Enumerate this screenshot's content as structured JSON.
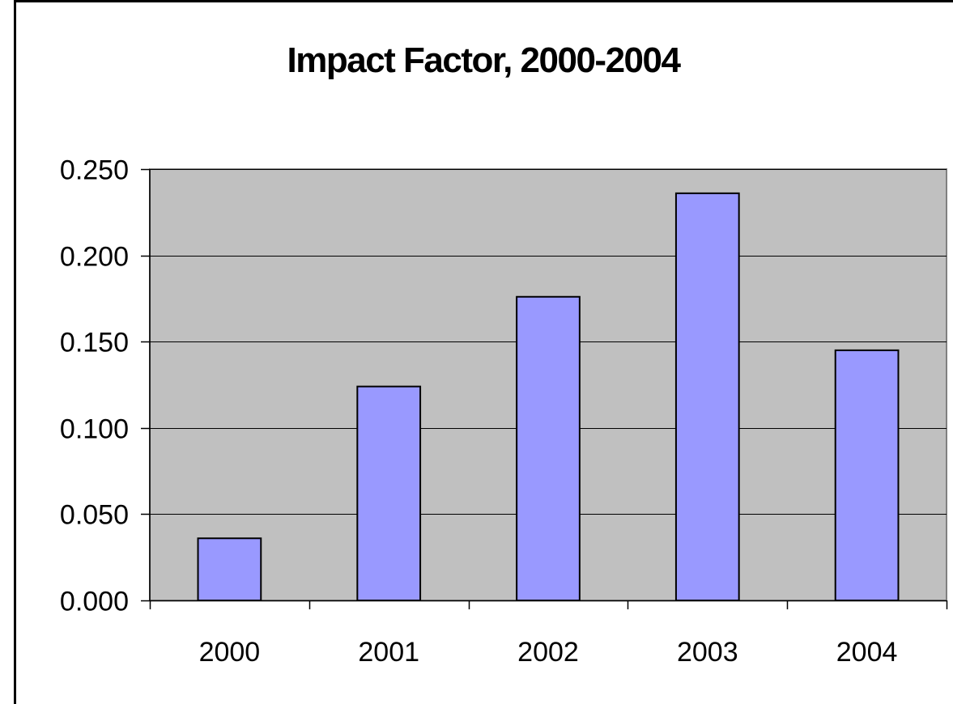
{
  "chart_data": {
    "type": "bar",
    "title": "Impact Factor, 2000-2004",
    "categories": [
      "2000",
      "2001",
      "2002",
      "2003",
      "2004"
    ],
    "values": [
      0.036,
      0.124,
      0.176,
      0.236,
      0.145
    ],
    "ylim": [
      0,
      0.25
    ],
    "yticks": [
      "0.000",
      "0.050",
      "0.100",
      "0.150",
      "0.200",
      "0.250"
    ],
    "xlabel": "",
    "ylabel": "",
    "grid": true,
    "legend": "none",
    "colors": {
      "bar_fill": "#9999ff",
      "bar_stroke": "#000000",
      "plot_background": "#c0c0c0",
      "gridline": "#000000"
    }
  }
}
